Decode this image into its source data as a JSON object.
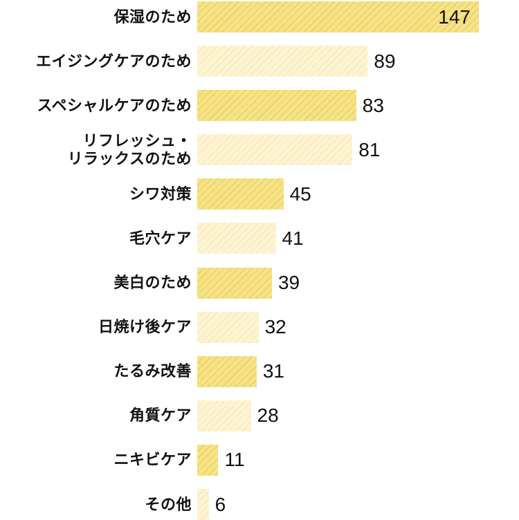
{
  "chart_data": {
    "type": "bar",
    "orientation": "horizontal",
    "title": "",
    "xlabel": "",
    "ylabel": "",
    "xlim": [
      0,
      147
    ],
    "grid": false,
    "legend": false,
    "value_labels_visible": true,
    "categories": [
      "保湿のため",
      "エイジングケアのため",
      "スペシャルケアのため",
      "リフレッシュ・リラックスのため",
      "シワ対策",
      "毛穴ケア",
      "美白のため",
      "日焼け後ケア",
      "たるみ改善",
      "角質ケア",
      "ニキビケア",
      "その他"
    ],
    "values": [
      147,
      89,
      83,
      81,
      45,
      41,
      39,
      32,
      31,
      28,
      11,
      6
    ],
    "rows": [
      {
        "label_lines": [
          "保湿のため"
        ],
        "value": "147",
        "shade": "dark",
        "value_inside": true
      },
      {
        "label_lines": [
          "エイジングケアのため"
        ],
        "value": "89",
        "shade": "light",
        "value_inside": false
      },
      {
        "label_lines": [
          "スペシャルケアのため"
        ],
        "value": "83",
        "shade": "dark",
        "value_inside": false
      },
      {
        "label_lines": [
          "リフレッシュ・",
          "リラックスのため"
        ],
        "value": "81",
        "shade": "light",
        "value_inside": false
      },
      {
        "label_lines": [
          "シワ対策"
        ],
        "value": "45",
        "shade": "dark",
        "value_inside": false
      },
      {
        "label_lines": [
          "毛穴ケア"
        ],
        "value": "41",
        "shade": "light",
        "value_inside": false
      },
      {
        "label_lines": [
          "美白のため"
        ],
        "value": "39",
        "shade": "dark",
        "value_inside": false
      },
      {
        "label_lines": [
          "日焼け後ケア"
        ],
        "value": "32",
        "shade": "light",
        "value_inside": false
      },
      {
        "label_lines": [
          "たるみ改善"
        ],
        "value": "31",
        "shade": "dark",
        "value_inside": false
      },
      {
        "label_lines": [
          "角質ケア"
        ],
        "value": "28",
        "shade": "light",
        "value_inside": false
      },
      {
        "label_lines": [
          "ニキビケア"
        ],
        "value": "11",
        "shade": "dark",
        "value_inside": false
      },
      {
        "label_lines": [
          "その他"
        ],
        "value": "6",
        "shade": "light",
        "value_inside": false
      }
    ],
    "colors": {
      "bar_dark_base": "#f5e385",
      "bar_dark_stripe": "#ecce66",
      "bar_light_base": "#fdf4d6",
      "bar_light_stripe": "#f7e9ae",
      "text": "#111111",
      "background": "#ffffff"
    }
  }
}
